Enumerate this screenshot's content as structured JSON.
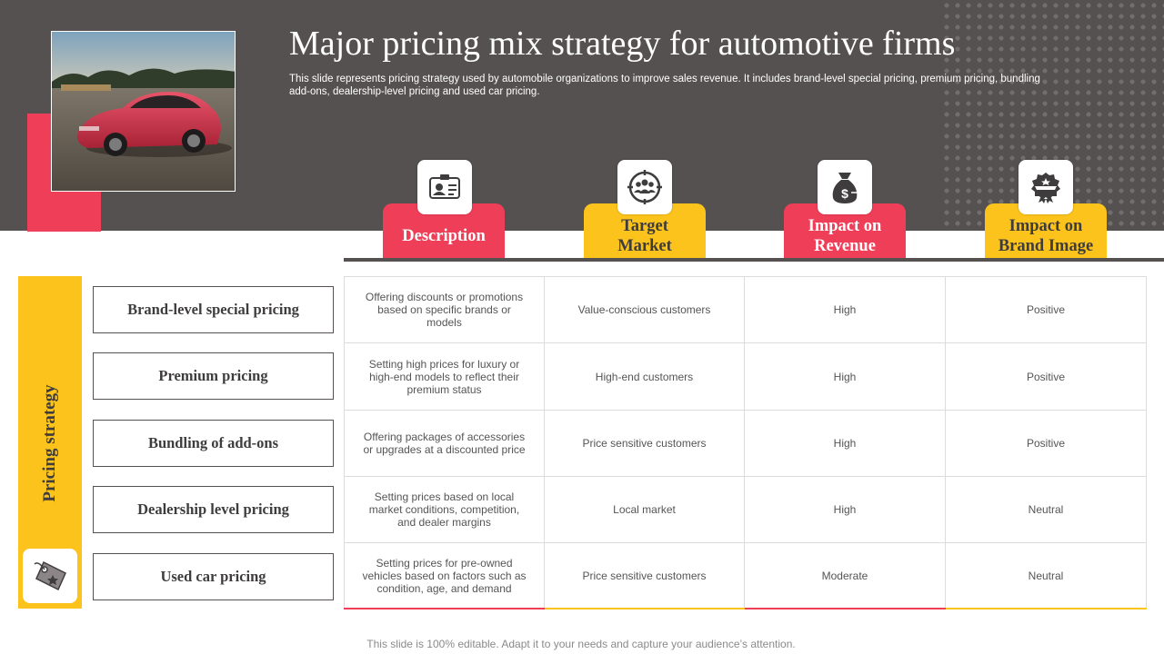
{
  "header": {
    "title": "Major pricing mix strategy for automotive firms",
    "subtitle": "This slide represents pricing strategy used by automobile organizations to improve sales revenue. It includes brand-level special pricing, premium pricing, bundling add-ons, dealership-level pricing and used car pricing."
  },
  "columns": [
    {
      "label": "Description",
      "icon": "id-card-icon",
      "color": "#ef3e57"
    },
    {
      "label": "Target Market",
      "icon": "target-audience-icon",
      "color": "#fbc31b"
    },
    {
      "label": "Impact on Revenue",
      "icon": "money-bag-icon",
      "color": "#ef3e57"
    },
    {
      "label": "Impact on Brand Image",
      "icon": "award-badge-icon",
      "color": "#fbc31b"
    }
  ],
  "sidebar": {
    "label": "Pricing strategy",
    "icon": "price-tag-icon"
  },
  "rows": [
    {
      "label": "Brand-level special pricing",
      "description": "Offering discounts or promotions based on specific brands or models",
      "target_market": "Value-conscious customers",
      "impact_revenue": "High",
      "impact_brand": "Positive"
    },
    {
      "label": "Premium pricing",
      "description": "Setting high prices for luxury or high-end models to reflect their premium status",
      "target_market": "High-end customers",
      "impact_revenue": "High",
      "impact_brand": "Positive"
    },
    {
      "label": "Bundling of add-ons",
      "description": "Offering packages of accessories or upgrades at a discounted price",
      "target_market": "Price sensitive customers",
      "impact_revenue": "High",
      "impact_brand": "Positive"
    },
    {
      "label": "Dealership level pricing",
      "description": "Setting prices based on local market conditions, competition, and dealer margins",
      "target_market": "Local market",
      "impact_revenue": "High",
      "impact_brand": "Neutral"
    },
    {
      "label": "Used car pricing",
      "description": "Setting prices for pre-owned vehicles based on factors such as condition, age, and demand",
      "target_market": "Price sensitive customers",
      "impact_revenue": "Moderate",
      "impact_brand": "Neutral"
    }
  ],
  "footer": {
    "text": "This slide is 100% editable. Adapt it to your needs and capture your audience’s attention."
  },
  "colors": {
    "accent_red": "#ef3e57",
    "accent_yellow": "#fbc31b",
    "header_gray": "#555150"
  }
}
